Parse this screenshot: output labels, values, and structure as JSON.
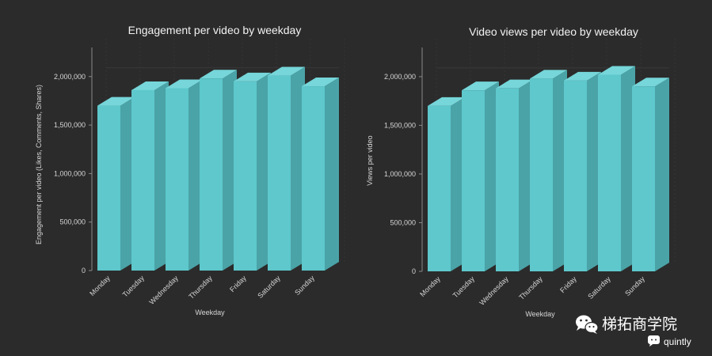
{
  "chart_data": [
    {
      "type": "bar",
      "title": "Engagement per video by weekday",
      "xlabel": "Weekday",
      "ylabel": "Engagement per video (Likes, Comments, Shares)",
      "categories": [
        "Monday",
        "Tuesday",
        "Wednesday",
        "Thursday",
        "Friday",
        "Saturday",
        "Sunday"
      ],
      "values": [
        1700000,
        1860000,
        1880000,
        1980000,
        1950000,
        2010000,
        1900000
      ],
      "ylim": [
        0,
        2300000
      ],
      "yticks": [
        0,
        500000,
        1000000,
        1500000,
        2000000
      ],
      "ytick_labels": [
        "0",
        "500,000",
        "1,000,000",
        "1,500,000",
        "2,000,000"
      ],
      "bar_color": "#5ec8cc"
    },
    {
      "type": "bar",
      "title": "Video views per video by weekday",
      "xlabel": "Weekday",
      "ylabel": "Views per video",
      "categories": [
        "Monday",
        "Tuesday",
        "Wednesday",
        "Thursday",
        "Friday",
        "Saturday",
        "Sunday"
      ],
      "values": [
        1700000,
        1860000,
        1880000,
        1980000,
        1960000,
        2020000,
        1900000
      ],
      "ylim": [
        0,
        2300000
      ],
      "yticks": [
        0,
        500000,
        1000000,
        1500000,
        2000000
      ],
      "ytick_labels": [
        "0",
        "500,000",
        "1,000,000",
        "1,500,000",
        "2,000,000"
      ],
      "bar_color": "#5ec8cc"
    }
  ],
  "branding": {
    "cn_text": "梯拓商学院",
    "en_text": "quintly",
    "wechat_icon": "wechat-icon",
    "quintly_icon": "quintly-chat-icon"
  }
}
